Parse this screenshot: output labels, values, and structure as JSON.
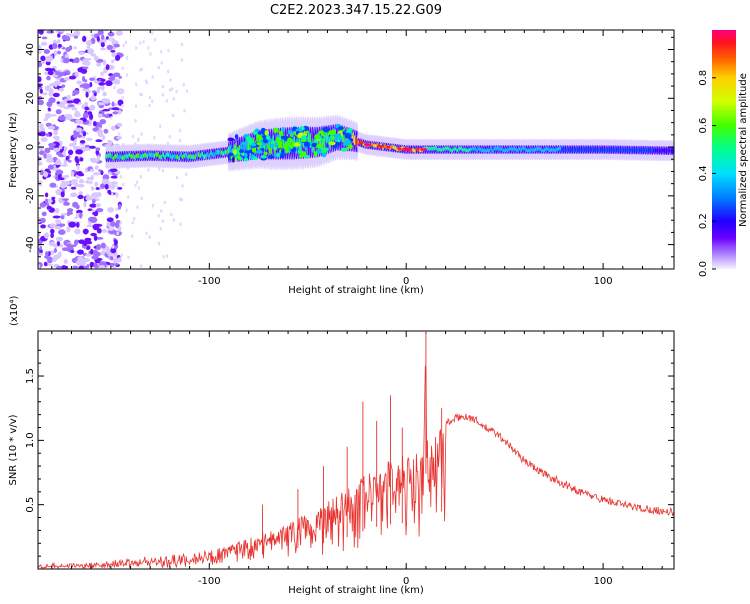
{
  "title": "C2E2.2023.347.15.22.G09",
  "colors": {
    "snr_line": "#e8322e",
    "frame": "#000000",
    "colormap": [
      "#f0f0ff",
      "#c0a0ff",
      "#8a2be2",
      "#3d00ff",
      "#0040ff",
      "#00c0ff",
      "#00ffa0",
      "#40ff00",
      "#c0ff00",
      "#ffe000",
      "#ff8000",
      "#ff2020",
      "#ff0080"
    ]
  },
  "chart_data": [
    {
      "type": "heatmap",
      "xlabel": "Height of straight line (km)",
      "ylabel": "Frequency (Hz)",
      "xlim": [
        -187,
        136
      ],
      "ylim": [
        -50,
        48
      ],
      "xticks": [
        -100,
        0,
        100
      ],
      "xtick_labels": [
        "-100",
        "0",
        "100"
      ],
      "yticks": [
        -40,
        -20,
        0,
        20,
        40
      ],
      "ytick_labels": [
        "-40",
        "-20",
        "0",
        "20",
        "40"
      ],
      "colorbar": {
        "label": "Normalized spectral amplitude",
        "range": [
          0.0,
          1.0
        ],
        "ticks": [
          0.0,
          0.2,
          0.4,
          0.6,
          0.8
        ],
        "tick_labels": [
          "0.0",
          "0.2",
          "0.4",
          "0.6",
          "0.8"
        ]
      },
      "ridge": {
        "x": [
          -150,
          -130,
          -110,
          -90,
          -75,
          -60,
          -45,
          -35,
          -28,
          -20,
          -10,
          0,
          20,
          60,
          100,
          136
        ],
        "y": [
          -4,
          -3.5,
          -4,
          -2,
          1,
          1.5,
          2,
          4,
          3,
          1,
          0,
          -1,
          -1,
          -1,
          -1,
          -1.5
        ]
      },
      "noise_region_x": [
        -187,
        -150
      ]
    },
    {
      "type": "line",
      "xlabel": "Height of straight line (km)",
      "ylabel": "SNR (10 * v/v)",
      "y_multiplier": "(x10⁴)",
      "xlim": [
        -187,
        136
      ],
      "ylim": [
        0,
        1.85
      ],
      "xticks": [
        -100,
        0,
        100
      ],
      "xtick_labels": [
        "-100",
        "0",
        "100"
      ],
      "yticks": [
        0.5,
        1.0,
        1.5
      ],
      "ytick_labels": [
        "0.5",
        "1.0",
        "1.5"
      ],
      "series": [
        {
          "envelope_x": [
            -187,
            -160,
            -140,
            -120,
            -100,
            -90,
            -80,
            -70,
            -60,
            -50,
            -40,
            -30,
            -20,
            -15,
            -10,
            -5,
            0,
            5,
            9,
            10,
            11,
            15,
            20,
            25,
            30,
            35,
            40,
            45,
            50,
            60,
            70,
            80,
            90,
            100,
            110,
            120,
            136
          ],
          "envelope_y": [
            0.03,
            0.04,
            0.07,
            0.1,
            0.14,
            0.18,
            0.24,
            0.3,
            0.38,
            0.44,
            0.52,
            0.62,
            0.76,
            0.82,
            0.86,
            0.88,
            0.9,
            0.92,
            0.95,
            1.85,
            0.95,
            1.1,
            1.13,
            1.17,
            1.19,
            1.16,
            1.1,
            1.06,
            1.0,
            0.84,
            0.74,
            0.66,
            0.59,
            0.54,
            0.5,
            0.47,
            0.44
          ]
        }
      ],
      "spikes": [
        {
          "x": -73,
          "y": 0.5
        },
        {
          "x": -55,
          "y": 0.62
        },
        {
          "x": -42,
          "y": 0.8
        },
        {
          "x": -30,
          "y": 0.95
        },
        {
          "x": -22,
          "y": 1.3
        },
        {
          "x": -15,
          "y": 1.15
        },
        {
          "x": -8,
          "y": 1.35
        },
        {
          "x": -2,
          "y": 1.1
        },
        {
          "x": 10,
          "y": 1.85
        },
        {
          "x": 18,
          "y": 1.25
        }
      ]
    }
  ]
}
